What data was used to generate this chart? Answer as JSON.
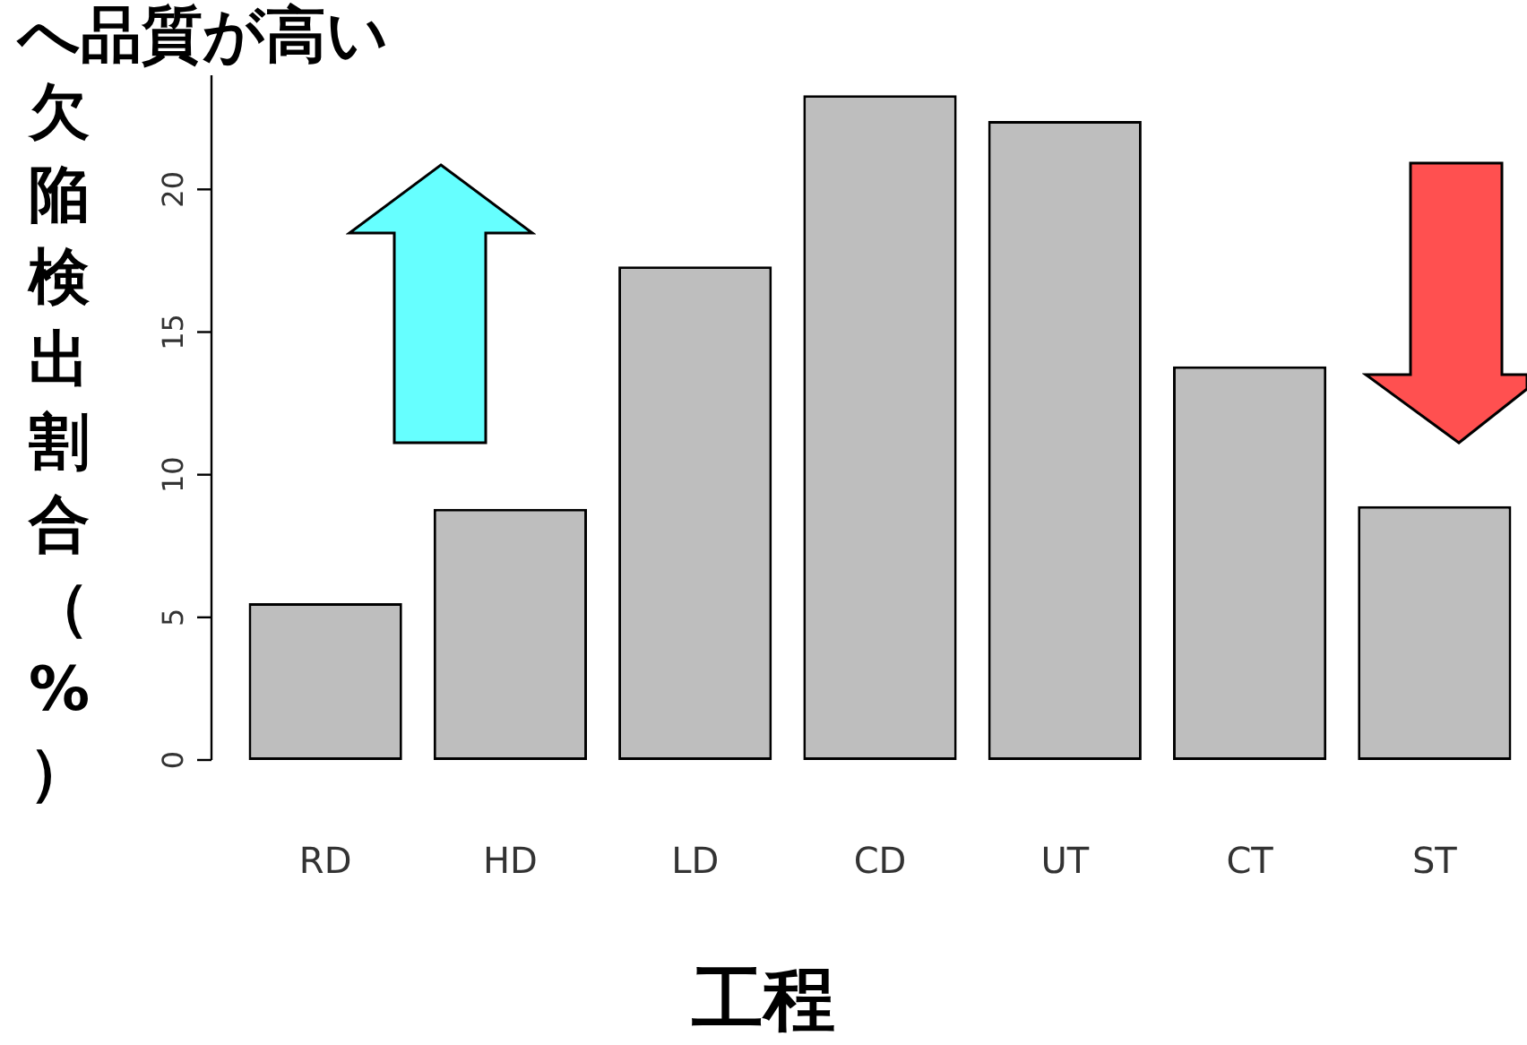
{
  "chart_data": {
    "type": "bar",
    "title": "へ品質が高い",
    "xlabel": "工程",
    "ylabel": "欠陥検出割合（%）",
    "categories": [
      "RD",
      "HD",
      "LD",
      "CD",
      "UT",
      "CT",
      "ST"
    ],
    "values": [
      5.5,
      8.8,
      17.3,
      23.3,
      22.4,
      13.8,
      8.9
    ],
    "color": "#bebebe",
    "ylim": [
      0,
      24
    ],
    "yticks": [
      0,
      5,
      10,
      15,
      20
    ]
  }
}
